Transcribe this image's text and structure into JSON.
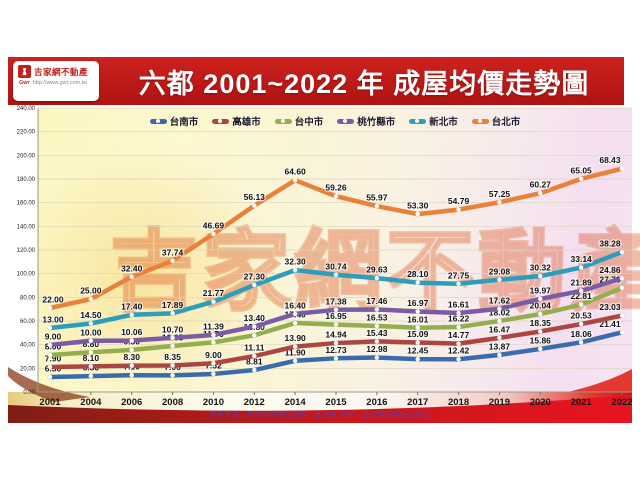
{
  "header": {
    "title": "六都 2001~2022 年 成屋均價走勢圖",
    "logo": {
      "name": "吉家網不動產",
      "abbr": "Gwr",
      "url": "http://www.gwr.com.tw"
    }
  },
  "watermark": {
    "text": "吉家網不動產"
  },
  "footer": {
    "source": "資料來源：內政部實價登錄網、吉家網 製表：吉家網不動產企研室"
  },
  "colors": {
    "header_bar": "#BE1A17",
    "band_red": "#E0161E",
    "plot_background_left": "#FBF6C0",
    "plot_background_right": "#F6E4F2"
  },
  "chart_data": {
    "type": "line",
    "title": "六都 2001~2022 年 成屋均價走勢圖",
    "categories": [
      "2001",
      "2004",
      "2006",
      "2008",
      "2010",
      "2012",
      "2014",
      "2015",
      "2016",
      "2017",
      "2018",
      "2019",
      "2020",
      "2021",
      "2022"
    ],
    "ylim": [
      0,
      240
    ],
    "yticks": [
      "240.00",
      "220.00",
      "200.00",
      "180.00",
      "160.00",
      "140.00",
      "120.00",
      "100.00",
      "80.00",
      "60.00",
      "40.00",
      "20.00",
      "0.00"
    ],
    "grid": true,
    "legend_position": "top-center",
    "marker": "white-dot",
    "series": [
      {
        "name": "台南市",
        "key": "tainan",
        "color": "#3A6CAC",
        "values": [
          6.5,
          6.8,
          7.1,
          7.06,
          7.52,
          8.81,
          11.9,
          12.73,
          12.98,
          12.45,
          12.42,
          13.87,
          15.86,
          18.06,
          21.41
        ]
      },
      {
        "name": "高雄市",
        "key": "kaohsiung",
        "color": "#AC4642",
        "values": [
          7.9,
          8.1,
          8.3,
          8.35,
          9.0,
          11.11,
          13.9,
          14.94,
          15.43,
          15.09,
          14.77,
          16.47,
          18.35,
          20.53,
          23.03
        ]
      },
      {
        "name": "台中市",
        "key": "taichung",
        "color": "#93AE4E",
        "values": [
          8.0,
          8.8,
          9.5,
          10.65,
          11.7,
          13.8,
          17.4,
          16.95,
          16.53,
          16.01,
          16.22,
          18.02,
          20.04,
          22.81,
          27.73
        ]
      },
      {
        "name": "桃竹縣市",
        "key": "taoyuan-hsinchu",
        "color": "#7A5CA4",
        "values": [
          9.0,
          10.0,
          10.06,
          10.7,
          11.39,
          13.4,
          16.4,
          17.38,
          17.46,
          16.97,
          16.61,
          17.62,
          19.97,
          21.89,
          24.86
        ]
      },
      {
        "name": "新北市",
        "key": "new-taipei",
        "color": "#2D9DBC",
        "values": [
          13.0,
          14.5,
          17.4,
          17.89,
          21.77,
          27.3,
          32.3,
          30.74,
          29.63,
          28.1,
          27.75,
          29.08,
          30.32,
          33.14,
          38.28
        ]
      },
      {
        "name": "台北市",
        "key": "taipei",
        "color": "#E9813B",
        "values": [
          22.0,
          25.0,
          32.4,
          37.74,
          46.69,
          56.13,
          64.6,
          59.26,
          55.97,
          53.3,
          54.79,
          57.25,
          60.27,
          65.05,
          68.43
        ]
      }
    ]
  }
}
